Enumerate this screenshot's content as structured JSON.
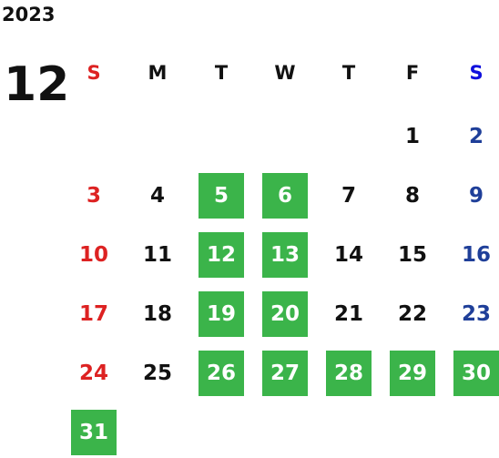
{
  "year": "2023",
  "month": "12",
  "weekdays": [
    "S",
    "M",
    "T",
    "W",
    "T",
    "F",
    "S"
  ],
  "weeks": [
    [
      null,
      null,
      null,
      null,
      null,
      {
        "text": "1",
        "marked": false
      },
      {
        "text": "2",
        "marked": false
      }
    ],
    [
      {
        "text": "3",
        "marked": false
      },
      {
        "text": "4",
        "marked": false
      },
      {
        "text": "5",
        "marked": true
      },
      {
        "text": "6",
        "marked": true
      },
      {
        "text": "7",
        "marked": false
      },
      {
        "text": "8",
        "marked": false
      },
      {
        "text": "9",
        "marked": false
      }
    ],
    [
      {
        "text": "10",
        "marked": false
      },
      {
        "text": "11",
        "marked": false
      },
      {
        "text": "12",
        "marked": true
      },
      {
        "text": "13",
        "marked": true
      },
      {
        "text": "14",
        "marked": false
      },
      {
        "text": "15",
        "marked": false
      },
      {
        "text": "16",
        "marked": false
      }
    ],
    [
      {
        "text": "17",
        "marked": false
      },
      {
        "text": "18",
        "marked": false
      },
      {
        "text": "19",
        "marked": true
      },
      {
        "text": "20",
        "marked": true
      },
      {
        "text": "21",
        "marked": false
      },
      {
        "text": "22",
        "marked": false
      },
      {
        "text": "23",
        "marked": false
      }
    ],
    [
      {
        "text": "24",
        "marked": false
      },
      {
        "text": "25",
        "marked": false
      },
      {
        "text": "26",
        "marked": true
      },
      {
        "text": "27",
        "marked": true
      },
      {
        "text": "28",
        "marked": true
      },
      {
        "text": "29",
        "marked": true
      },
      {
        "text": "30",
        "marked": true
      }
    ],
    [
      {
        "text": "31",
        "marked": true
      },
      null,
      null,
      null,
      null,
      null,
      null
    ]
  ]
}
